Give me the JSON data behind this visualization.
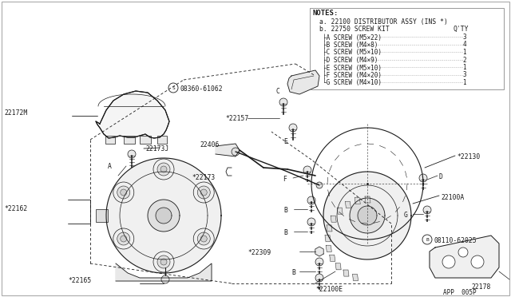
{
  "bg_color": "#ffffff",
  "line_color": "#1a1a1a",
  "text_color": "#1a1a1a",
  "footer": "APP  005P",
  "notes_title": "NOTES:",
  "note_a": "a. 22100 DISTRIBUTOR ASSY (INS *)",
  "note_b": "b. 22750 SCREW KIT",
  "qty_label": "Q'TY",
  "screws": [
    [
      "├A SCREW (M5×22)",
      "3"
    ],
    [
      "├B SCREW (M4×8)",
      "4"
    ],
    [
      "├C SCREW (M5×10)",
      "1"
    ],
    [
      "├D SCREW (M4×9)",
      "2"
    ],
    [
      "├E SCREW (M5×10)",
      "1"
    ],
    [
      "├F SCREW (M4×20)",
      "3"
    ],
    [
      "└G SCREW (M4×10)",
      "1"
    ]
  ]
}
